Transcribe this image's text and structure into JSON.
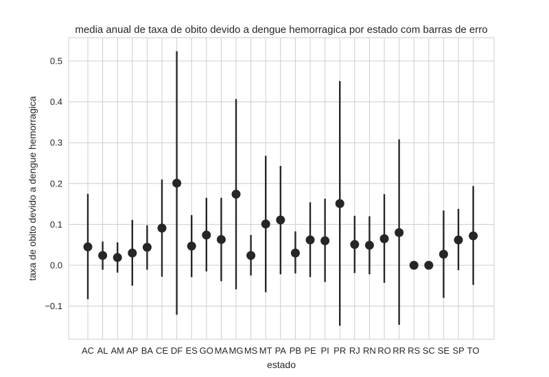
{
  "chart_data": {
    "type": "scatter",
    "title": "media anual de taxa de obito devido a dengue hemorragica por estado com barras de erro",
    "xlabel": "estado",
    "ylabel": "taxa de obito devido a dengue hemorragica",
    "categories": [
      "AC",
      "AL",
      "AM",
      "AP",
      "BA",
      "CE",
      "DF",
      "ES",
      "GO",
      "MA",
      "MG",
      "MS",
      "MT",
      "PA",
      "PB",
      "PE",
      "PI",
      "PR",
      "RJ",
      "RN",
      "RO",
      "RR",
      "RS",
      "SC",
      "SE",
      "SP",
      "TO"
    ],
    "values": [
      0.045,
      0.024,
      0.019,
      0.03,
      0.044,
      0.091,
      0.201,
      0.047,
      0.074,
      0.063,
      0.174,
      0.024,
      0.101,
      0.111,
      0.03,
      0.062,
      0.06,
      0.151,
      0.051,
      0.049,
      0.065,
      0.08,
      0.0,
      0.0,
      0.027,
      0.062,
      0.072
    ],
    "err_low": [
      -0.083,
      -0.011,
      -0.018,
      -0.05,
      -0.011,
      -0.028,
      -0.121,
      -0.029,
      -0.015,
      -0.039,
      -0.059,
      -0.025,
      -0.066,
      -0.022,
      -0.02,
      -0.029,
      -0.041,
      -0.148,
      -0.019,
      -0.022,
      -0.043,
      -0.146,
      0.0,
      0.0,
      -0.08,
      -0.012,
      -0.048
    ],
    "err_high": [
      0.175,
      0.058,
      0.056,
      0.111,
      0.098,
      0.21,
      0.524,
      0.123,
      0.165,
      0.165,
      0.407,
      0.074,
      0.268,
      0.243,
      0.083,
      0.154,
      0.163,
      0.451,
      0.121,
      0.12,
      0.174,
      0.308,
      0.0,
      0.0,
      0.134,
      0.138,
      0.194
    ],
    "yticks": [
      -0.1,
      0.0,
      0.1,
      0.2,
      0.3,
      0.4,
      0.5
    ],
    "ytick_labels": [
      "−0.1",
      "0.0",
      "0.1",
      "0.2",
      "0.3",
      "0.4",
      "0.5"
    ],
    "ylim": [
      -0.18,
      0.56
    ],
    "grid": true,
    "marker_color": "#262626",
    "grid_color": "#cccccc"
  }
}
